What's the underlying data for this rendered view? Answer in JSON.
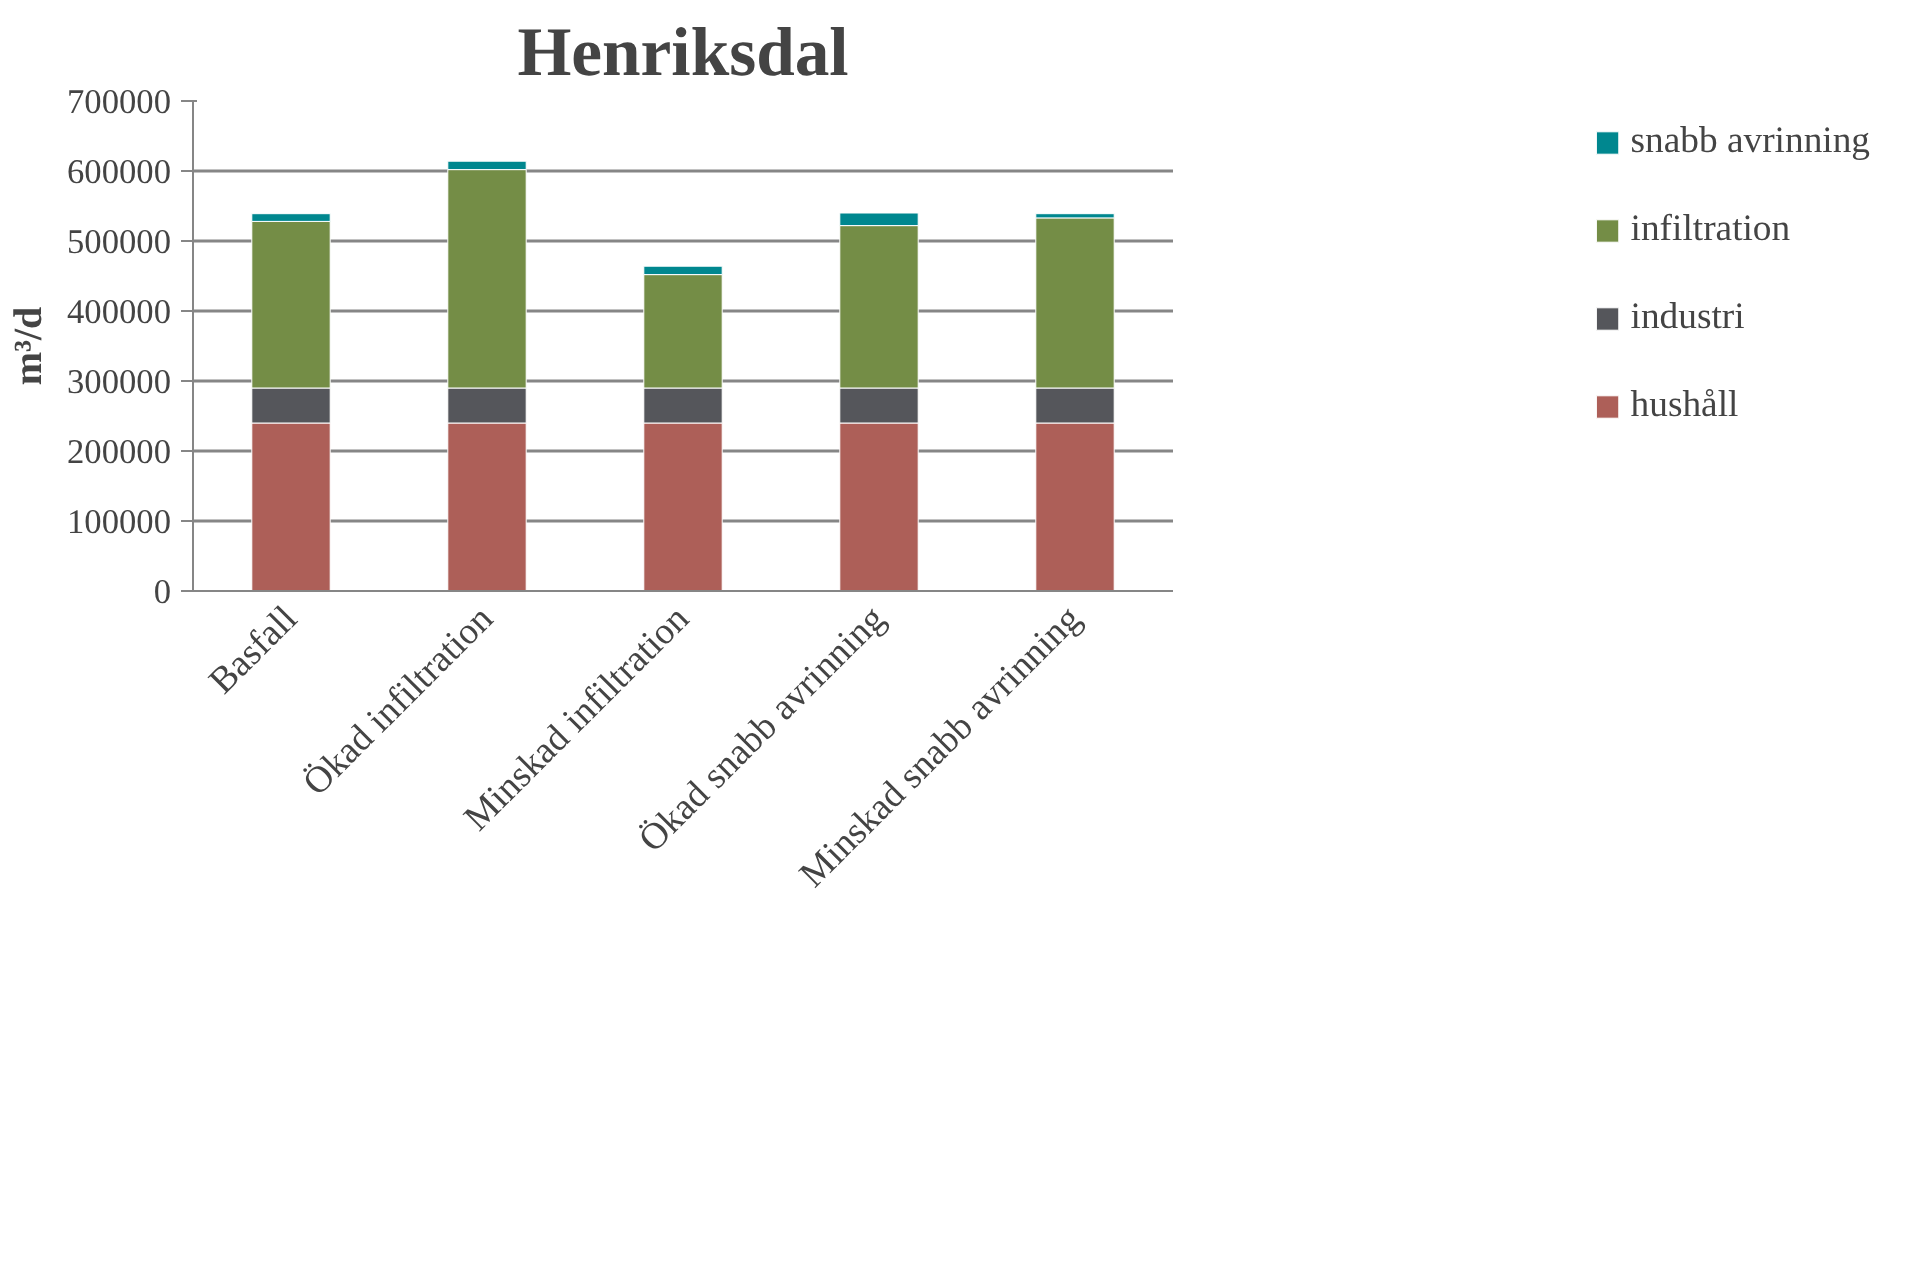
{
  "chart_data": {
    "type": "bar",
    "title": "Henriksdal",
    "ylabel": "m³/d",
    "stacked": true,
    "categories": [
      "Basfall",
      "Ökad infiltration",
      "Minskad infiltration",
      "Ökad snabb avrinning",
      "Minskad snabb avrinning"
    ],
    "series": [
      {
        "name": "hushåll",
        "color": "#ad5f58",
        "values": [
          240000,
          240000,
          240000,
          240000,
          240000
        ]
      },
      {
        "name": "industri",
        "color": "#55565b",
        "values": [
          50000,
          50000,
          50000,
          50000,
          50000
        ]
      },
      {
        "name": "infiltration",
        "color": "#748d46",
        "values": [
          238000,
          312000,
          162000,
          232000,
          243000
        ]
      },
      {
        "name": "snabb avrinning",
        "color": "#00878f",
        "values": [
          11000,
          12000,
          12000,
          18000,
          6000
        ]
      }
    ],
    "ylim": [
      0,
      700000
    ],
    "yticks": [
      0,
      100000,
      200000,
      300000,
      400000,
      500000,
      600000,
      700000
    ],
    "grid": "y",
    "legend": "right"
  }
}
